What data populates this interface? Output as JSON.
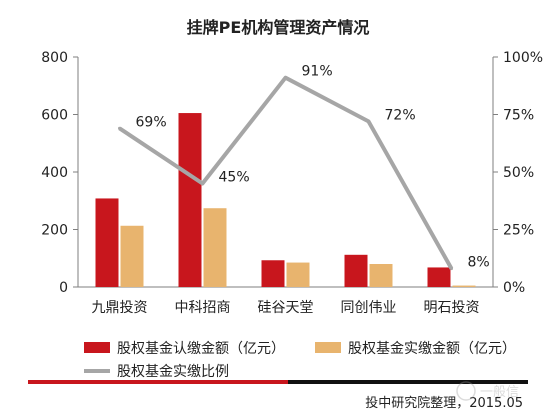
{
  "chart_data": {
    "type": "bar",
    "title": "挂牌PE机构管理资产情况",
    "categories": [
      "九鼎投资",
      "中科招商",
      "硅谷天堂",
      "同创伟业",
      "明石投资"
    ],
    "y_left": {
      "ylim": [
        0,
        800
      ],
      "ticks": [
        "0",
        "200",
        "400",
        "600",
        "800"
      ]
    },
    "y_right": {
      "ylim": [
        0,
        100
      ],
      "ticks": [
        "0%",
        "25%",
        "50%",
        "75%",
        "100%"
      ]
    },
    "series": [
      {
        "name": "股权基金认缴金额（亿元）",
        "type": "bar",
        "axis": "left",
        "color": "#c8161d",
        "values": [
          308,
          605,
          93,
          112,
          68
        ]
      },
      {
        "name": "股权基金实缴金额（亿元）",
        "type": "bar",
        "axis": "left",
        "color": "#e8b46e",
        "values": [
          213,
          274,
          85,
          80,
          5
        ]
      },
      {
        "name": "股权基金实缴比例",
        "type": "line",
        "axis": "right",
        "color": "#a6a6a6",
        "values": [
          69,
          45,
          91,
          72,
          8
        ],
        "labels": [
          "69%",
          "45%",
          "91%",
          "72%",
          "8%"
        ]
      }
    ],
    "grid": false,
    "legend_position": "bottom"
  },
  "footer": {
    "source": "投中研究院整理，2015.05",
    "watermark": "一般信"
  }
}
